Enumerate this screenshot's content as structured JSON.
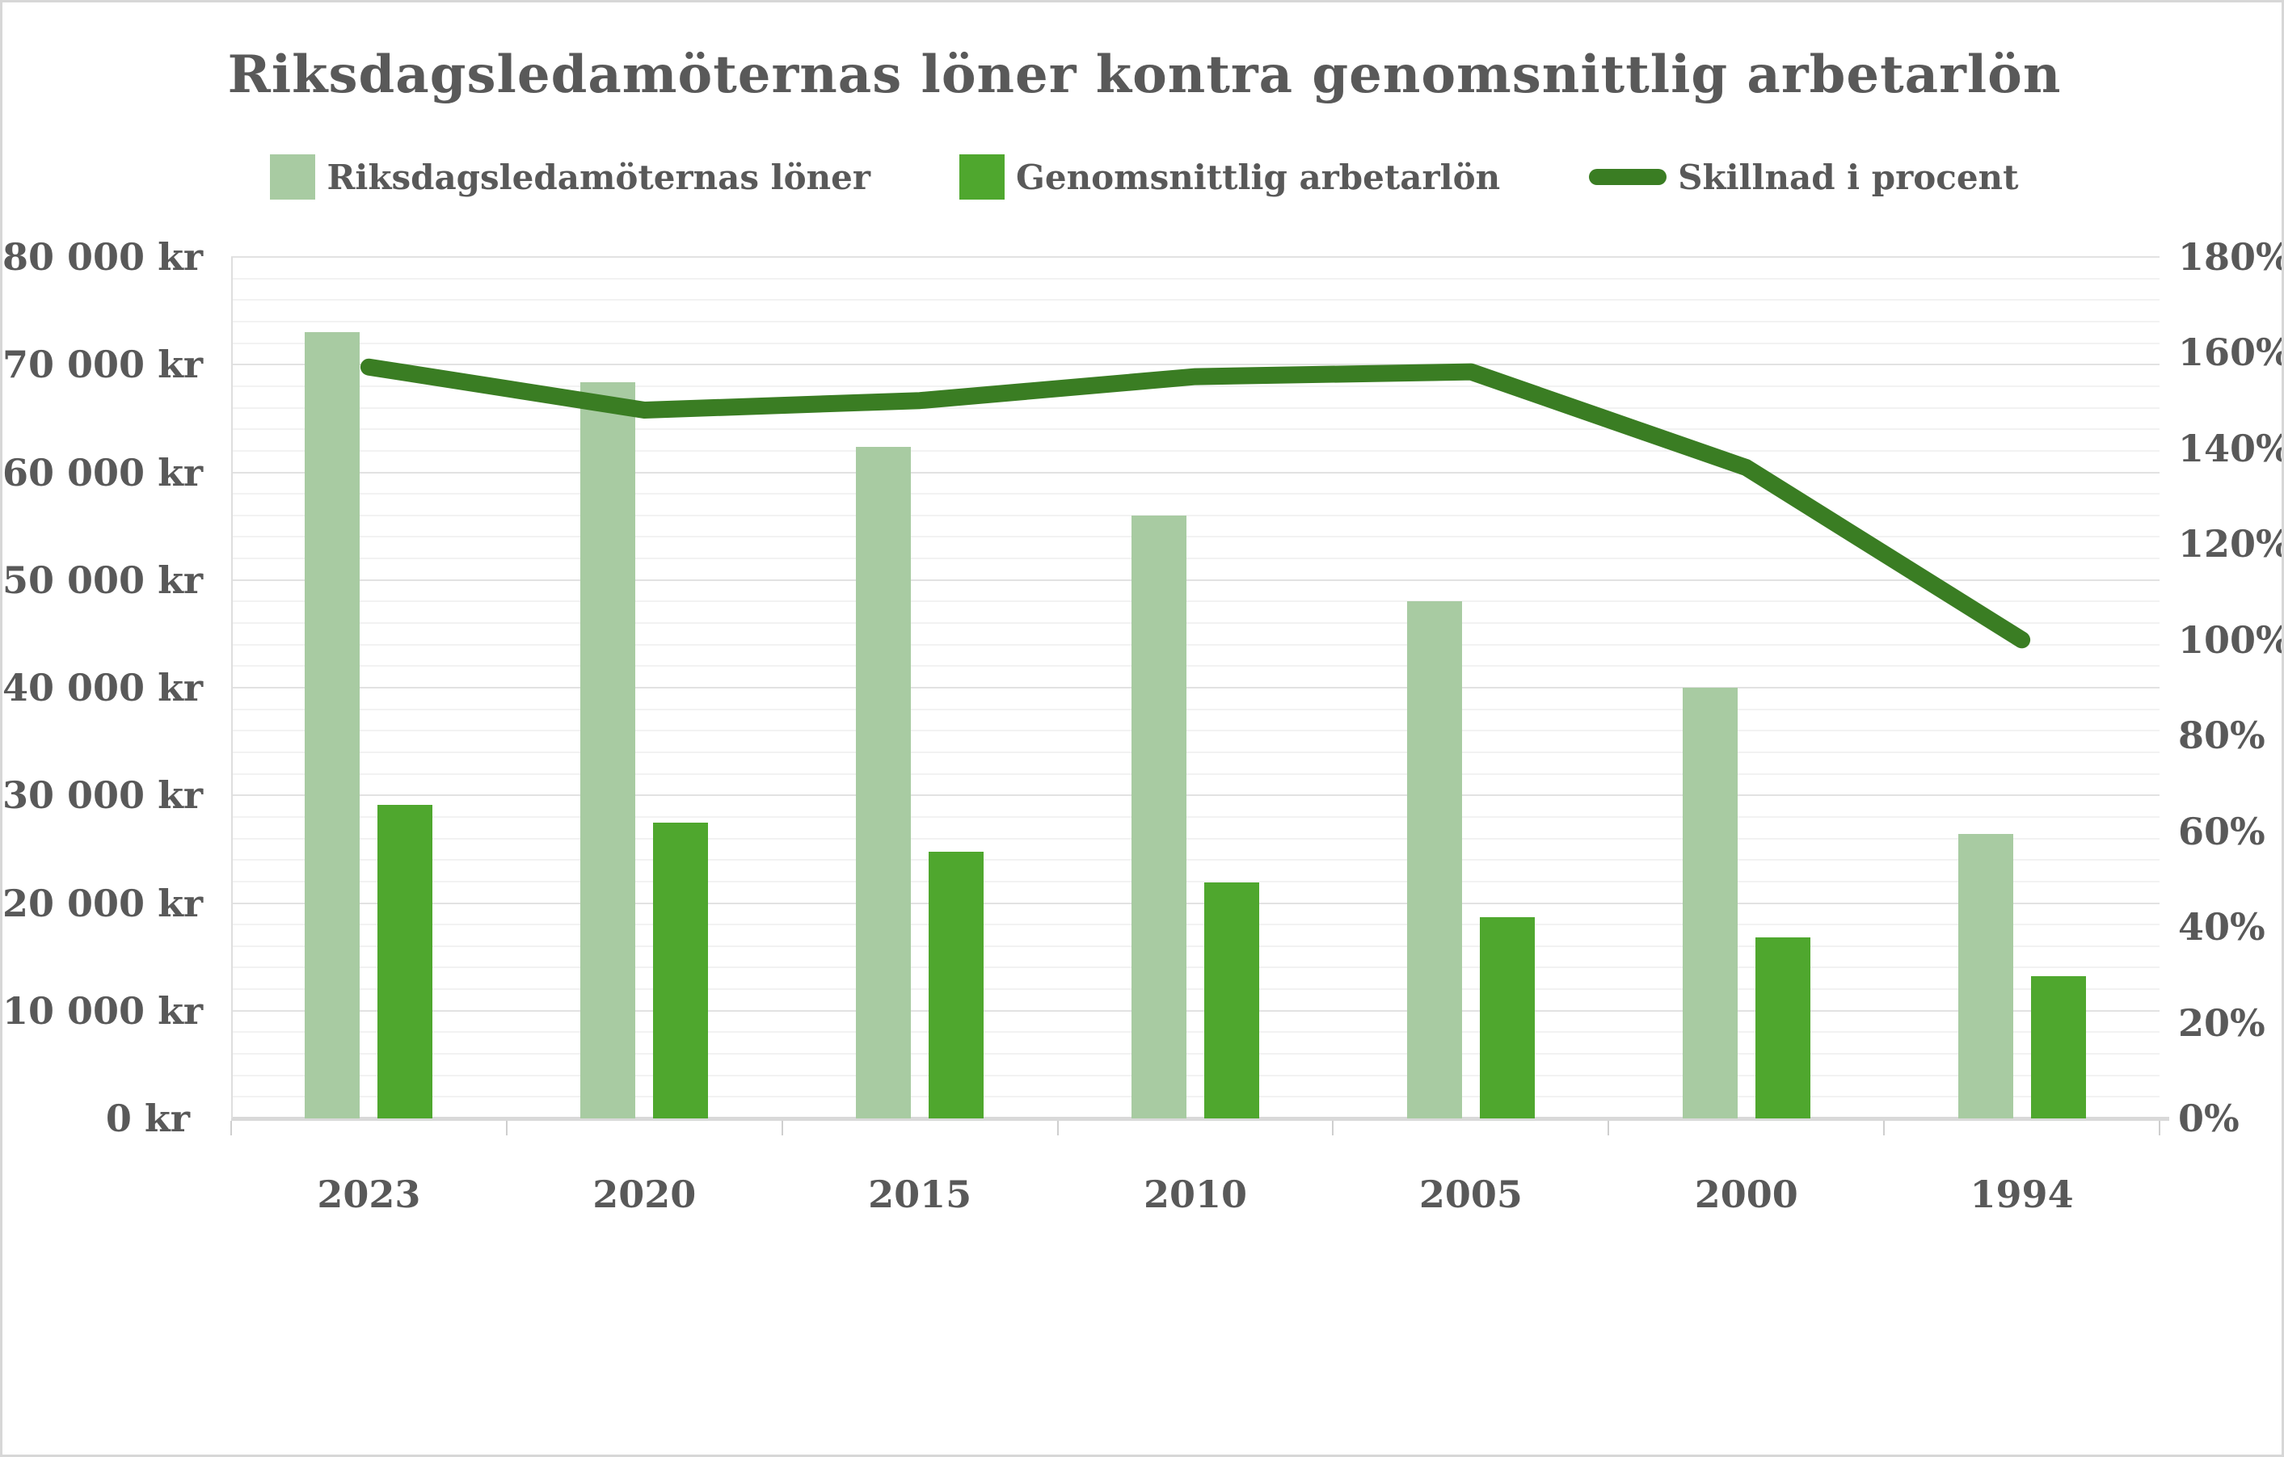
{
  "title": "Riksdagsledamöternas löner kontra genomsnittlig arbetarlön",
  "legend": {
    "items": [
      {
        "label": "Riksdagsledamöternas löner",
        "marker": "bar-swatch",
        "color": "#A8CBA2"
      },
      {
        "label": "Genomsnittlig arbetarlön",
        "marker": "bar-swatch",
        "color": "#4FA72E"
      },
      {
        "label": "Skillnad i procent",
        "marker": "line-swatch",
        "color": "#3A7D23"
      }
    ]
  },
  "chart_data": {
    "type": "combo",
    "categories": [
      "2023",
      "2020",
      "2015",
      "2010",
      "2005",
      "2000",
      "1994"
    ],
    "series": [
      {
        "name": "Riksdagsledamöternas löner",
        "type": "bar",
        "axis": "left",
        "color": "#A8CBA2",
        "values": [
          73000,
          68400,
          62400,
          56000,
          48000,
          40000,
          26400
        ]
      },
      {
        "name": "Genomsnittlig arbetarlön",
        "type": "bar",
        "axis": "left",
        "color": "#4FA72E",
        "values": [
          29100,
          27500,
          24800,
          21900,
          18700,
          16800,
          13200
        ]
      },
      {
        "name": "Skillnad i procent",
        "type": "line",
        "axis": "right",
        "color": "#3A7D23",
        "values": [
          157,
          148,
          150,
          155,
          156,
          136,
          100
        ]
      }
    ],
    "left_axis": {
      "unit": "kr",
      "min": 0,
      "max": 80000,
      "major_step": 10000,
      "minor_step": 2000,
      "tick_labels": [
        "80 000 kr",
        "70 000 kr",
        "60 000 kr",
        "50 000 kr",
        "40 000 kr",
        "30 000 kr",
        "20 000 kr",
        "10 000 kr",
        "0 kr"
      ]
    },
    "right_axis": {
      "unit": "%",
      "min": 0,
      "max": 180,
      "major_step": 20,
      "tick_labels": [
        "180%",
        "160%",
        "140%",
        "120%",
        "100%",
        "80%",
        "60%",
        "40%",
        "20%",
        "0%"
      ]
    },
    "grid": {
      "minor": true,
      "major": true
    },
    "legend_position": "top"
  }
}
